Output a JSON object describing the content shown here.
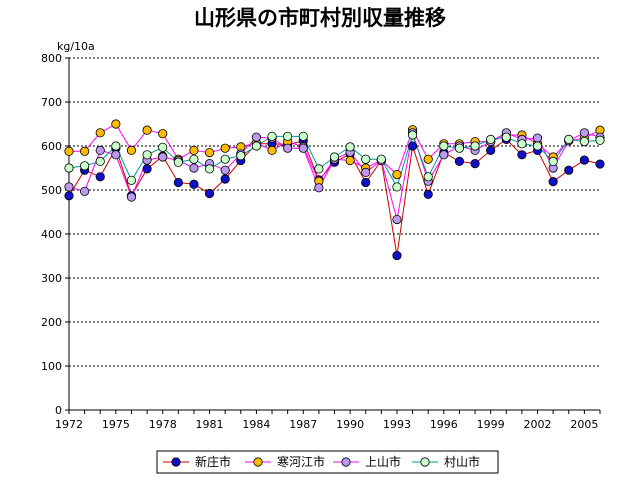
{
  "chart_data": {
    "type": "line",
    "title": "山形県の市町村別収量推移",
    "ylabel": "kg/10a",
    "xlabel": "",
    "ylim": [
      0,
      800
    ],
    "yticks": [
      0,
      100,
      200,
      300,
      400,
      500,
      600,
      700,
      800
    ],
    "xlim": [
      1972,
      2006
    ],
    "xticks": [
      1972,
      1975,
      1978,
      1981,
      1984,
      1987,
      1990,
      1993,
      1996,
      1999,
      2002,
      2005
    ],
    "grid": "horizontal-dotted",
    "legend_position": "bottom-center",
    "x": [
      1972,
      1973,
      1974,
      1975,
      1976,
      1977,
      1978,
      1979,
      1980,
      1981,
      1982,
      1983,
      1984,
      1985,
      1986,
      1987,
      1988,
      1989,
      1990,
      1991,
      1992,
      1993,
      1994,
      1995,
      1996,
      1997,
      1998,
      1999,
      2000,
      2001,
      2002,
      2003,
      2004,
      2005,
      2006
    ],
    "series": [
      {
        "name": "新庄市",
        "color": "#1010c8",
        "line_color": "#cc0000",
        "values": [
          487,
          545,
          530,
          595,
          487,
          548,
          577,
          517,
          513,
          492,
          525,
          567,
          605,
          605,
          603,
          612,
          523,
          563,
          582,
          517,
          567,
          351,
          600,
          490,
          585,
          565,
          560,
          590,
          615,
          580,
          590,
          519,
          545,
          568,
          559
        ]
      },
      {
        "name": "寒河江市",
        "color": "#ffbb00",
        "line_color": "#ff00ff",
        "values": [
          588,
          588,
          630,
          650,
          590,
          636,
          628,
          570,
          590,
          585,
          595,
          598,
          607,
          590,
          610,
          598,
          520,
          570,
          567,
          550,
          568,
          535,
          637,
          570,
          605,
          605,
          610,
          610,
          625,
          625,
          605,
          575,
          612,
          618,
          636
        ]
      },
      {
        "name": "上山市",
        "color": "#bb99ee",
        "line_color": "#ff00ff",
        "values": [
          507,
          497,
          590,
          580,
          484,
          568,
          575,
          567,
          550,
          560,
          545,
          582,
          620,
          618,
          595,
          595,
          505,
          570,
          586,
          540,
          567,
          433,
          630,
          520,
          580,
          600,
          590,
          610,
          630,
          615,
          618,
          550,
          612,
          630,
          620
        ]
      },
      {
        "name": "村山市",
        "color": "#ccffcc",
        "line_color": "#009999",
        "values": [
          550,
          555,
          565,
          600,
          522,
          580,
          597,
          563,
          570,
          548,
          570,
          578,
          600,
          622,
          622,
          622,
          548,
          575,
          598,
          570,
          570,
          507,
          625,
          530,
          600,
          595,
          600,
          615,
          620,
          605,
          600,
          565,
          615,
          610,
          613
        ]
      }
    ]
  }
}
